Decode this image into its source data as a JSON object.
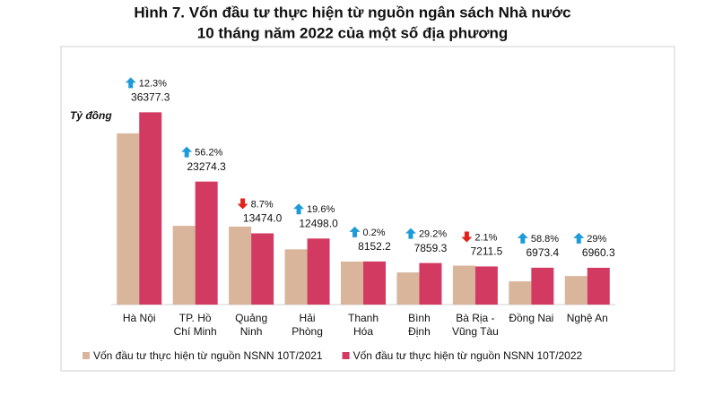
{
  "chart_data": {
    "type": "bar",
    "title": [
      "Hình 7. Vốn đầu tư thực hiện từ nguồn ngân sách Nhà nước",
      "10 tháng năm 2022 của một số địa phương"
    ],
    "y_label": "Tỷ đồng",
    "categories": [
      [
        "Hà Nội"
      ],
      [
        "TP. Hồ",
        "Chí Minh"
      ],
      [
        "Quảng",
        "Ninh"
      ],
      [
        "Hải",
        "Phòng"
      ],
      [
        "Thanh",
        "Hóa"
      ],
      [
        "Bình",
        "Định"
      ],
      [
        "Bà Rịa -",
        "Vũng Tàu"
      ],
      [
        "Đồng Nai"
      ],
      [
        "Nghệ An"
      ]
    ],
    "series": [
      {
        "name": "Vốn đầu tư thực hiện từ nguồn NSNN 10T/2021",
        "color": "#d9b59c",
        "values": [
          32393,
          14900,
          14758,
          10450,
          8136,
          6083,
          7366,
          4391,
          5396
        ]
      },
      {
        "name": "Vốn đầu tư thực hiện từ nguồn NSNN 10T/2022",
        "color": "#d23a61",
        "values": [
          36377.3,
          23274.3,
          13474.0,
          12498.0,
          8152.2,
          7859.3,
          7211.5,
          6973.4,
          6960.3
        ],
        "value_labels": [
          "36377.3",
          "23274.3",
          "13474.0",
          "12498.0",
          "8152.2",
          "7859.3",
          "7211.5",
          "6973.4",
          "6960.3"
        ]
      }
    ],
    "change_labels": [
      "12.3%",
      "56.2%",
      "8.7%",
      "19.6%",
      "0.2%",
      "29.2%",
      "2.1%",
      "58.8%",
      "29%"
    ],
    "change_direction": [
      "up",
      "up",
      "down",
      "up",
      "up",
      "up",
      "down",
      "up",
      "up"
    ],
    "arrow_colors": {
      "up": "#1d9bd8",
      "down": "#e0231c"
    },
    "ylim": [
      0,
      40000
    ]
  }
}
